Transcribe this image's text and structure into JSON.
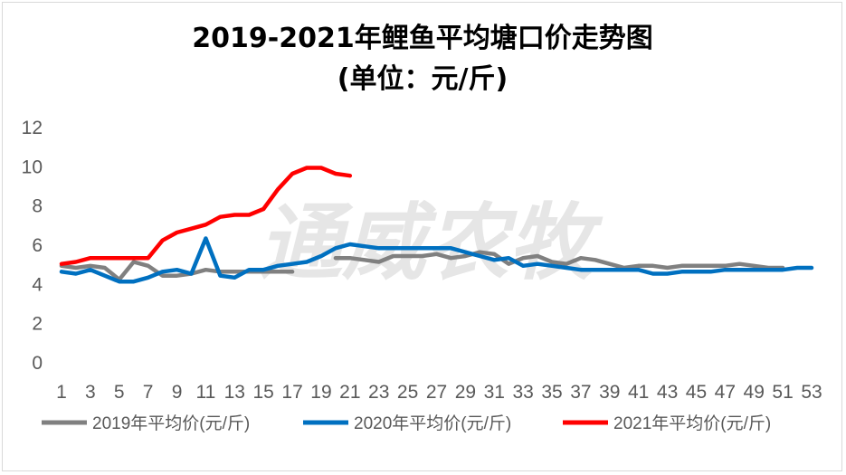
{
  "chart_data": {
    "type": "line",
    "title": "2019-2021年鲤鱼平均塘口价走势图",
    "subtitle": "(单位：元/斤)",
    "watermark": "通威农牧",
    "xlabel": "",
    "ylabel": "",
    "ylim": [
      0,
      12
    ],
    "yticks": [
      "0",
      "2",
      "4",
      "6",
      "8",
      "10",
      "12"
    ],
    "x": [
      1,
      2,
      3,
      4,
      5,
      6,
      7,
      8,
      9,
      10,
      11,
      12,
      13,
      14,
      15,
      16,
      17,
      18,
      19,
      20,
      21,
      22,
      23,
      24,
      25,
      26,
      27,
      28,
      29,
      30,
      31,
      32,
      33,
      34,
      35,
      36,
      37,
      38,
      39,
      40,
      41,
      42,
      43,
      44,
      45,
      46,
      47,
      48,
      49,
      50,
      51,
      52,
      53
    ],
    "xtick_labels": [
      "1",
      "3",
      "5",
      "7",
      "9",
      "11",
      "13",
      "15",
      "17",
      "19",
      "21",
      "23",
      "25",
      "27",
      "29",
      "31",
      "33",
      "35",
      "37",
      "39",
      "41",
      "43",
      "45",
      "47",
      "49",
      "51",
      "53"
    ],
    "grid": false,
    "legend_position": "bottom",
    "series": [
      {
        "name": "2019年平均价(元/斤)",
        "color": "#808080",
        "values": [
          4.9,
          4.8,
          4.9,
          4.8,
          4.2,
          5.1,
          4.9,
          4.4,
          4.4,
          4.5,
          4.7,
          4.6,
          4.6,
          4.6,
          4.6,
          4.6,
          4.6,
          null,
          null,
          5.3,
          5.3,
          5.2,
          5.1,
          5.4,
          5.4,
          5.4,
          5.5,
          5.3,
          5.4,
          5.6,
          5.5,
          5.0,
          5.3,
          5.4,
          5.1,
          5.0,
          5.3,
          5.2,
          5.0,
          4.8,
          4.9,
          4.9,
          4.8,
          4.9,
          4.9,
          4.9,
          4.9,
          5.0,
          4.9,
          4.8,
          4.8,
          null,
          null
        ]
      },
      {
        "name": "2020年平均价(元/斤)",
        "color": "#0070c0",
        "values": [
          4.6,
          4.5,
          4.7,
          4.4,
          4.1,
          4.1,
          4.3,
          4.6,
          4.7,
          4.5,
          6.3,
          4.4,
          4.3,
          4.7,
          4.7,
          4.9,
          5.0,
          5.1,
          5.4,
          5.8,
          6.0,
          5.9,
          5.8,
          5.8,
          5.8,
          5.8,
          5.8,
          5.8,
          5.6,
          5.4,
          5.2,
          5.3,
          4.9,
          5.0,
          4.9,
          4.8,
          4.7,
          4.7,
          4.7,
          4.7,
          4.7,
          4.5,
          4.5,
          4.6,
          4.6,
          4.6,
          4.7,
          4.7,
          4.7,
          4.7,
          4.7,
          4.8,
          4.8
        ]
      },
      {
        "name": "2021年平均价(元/斤)",
        "color": "#ff0000",
        "values": [
          5.0,
          5.1,
          5.3,
          5.3,
          5.3,
          5.3,
          5.3,
          6.2,
          6.6,
          6.8,
          7.0,
          7.4,
          7.5,
          7.5,
          7.8,
          8.8,
          9.6,
          9.9,
          9.9,
          9.6,
          9.5,
          null,
          null,
          null,
          null,
          null,
          null,
          null,
          null,
          null,
          null,
          null,
          null,
          null,
          null,
          null,
          null,
          null,
          null,
          null,
          null,
          null,
          null,
          null,
          null,
          null,
          null,
          null,
          null,
          null,
          null,
          null,
          null
        ]
      }
    ]
  }
}
